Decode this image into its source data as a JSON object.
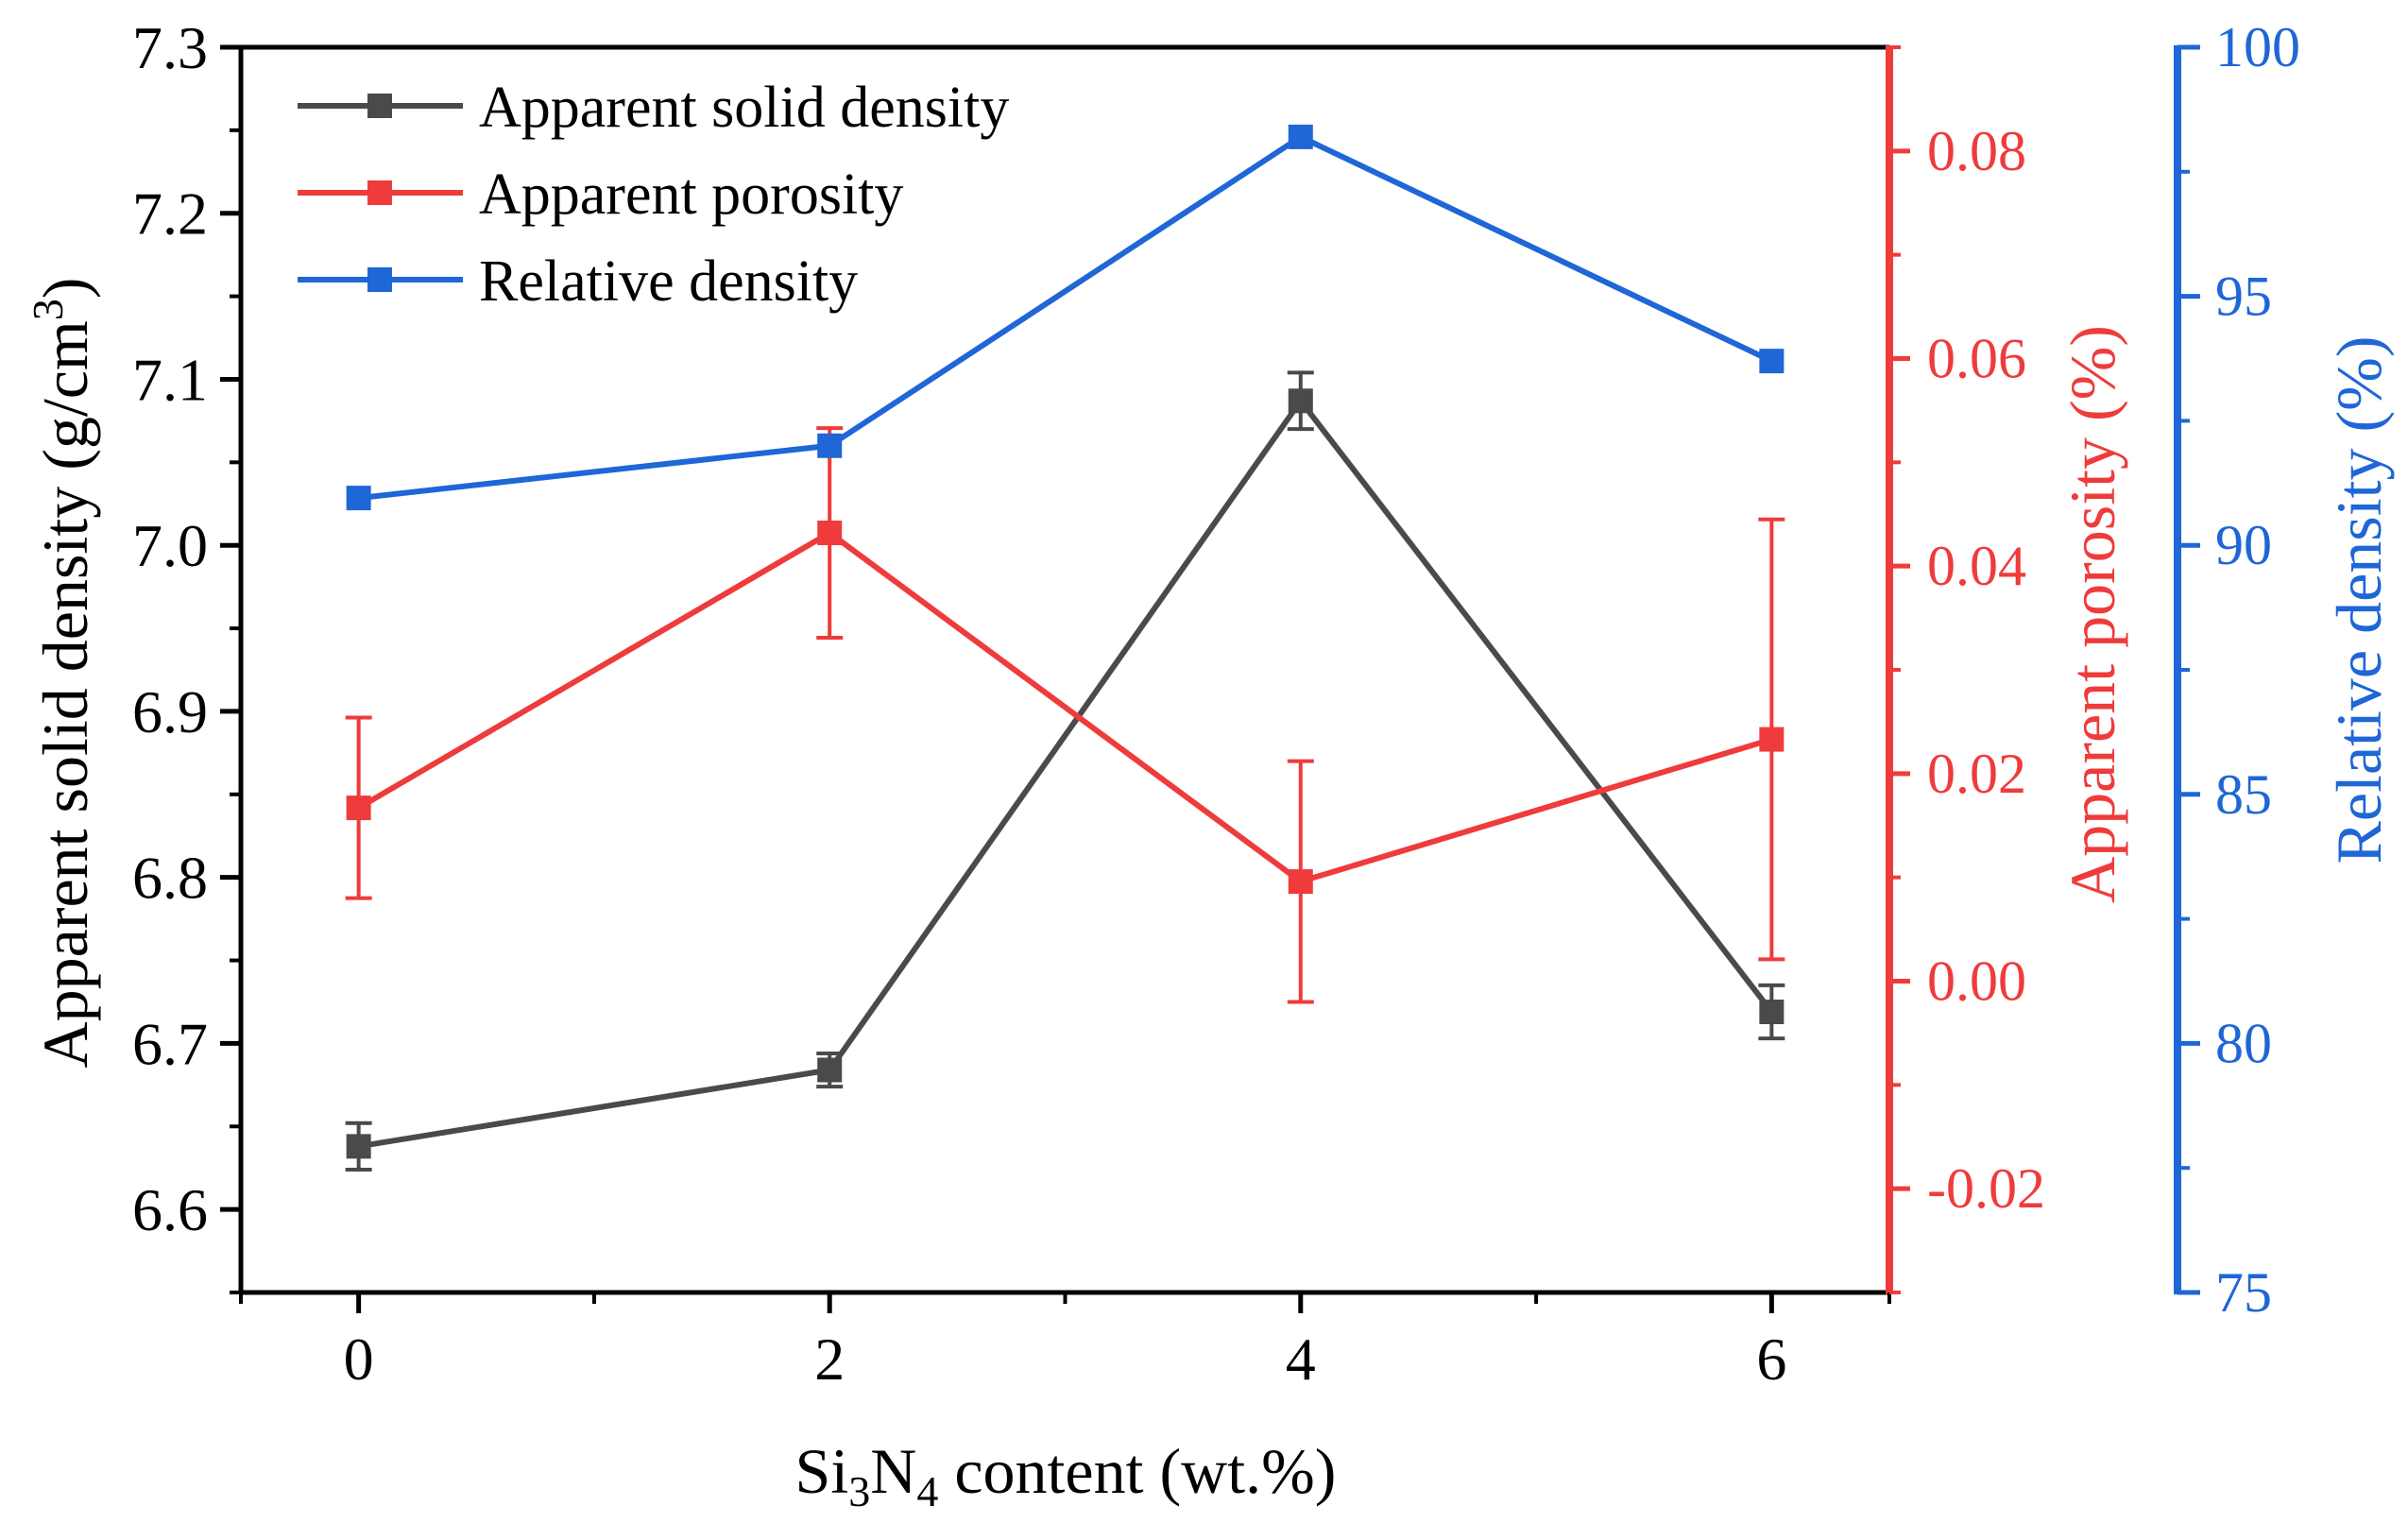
{
  "chart_data": {
    "type": "line",
    "x": [
      0,
      2,
      4,
      6
    ],
    "xlabel": {
      "pre": "Si",
      "sub1": "3",
      "mid": "N",
      "sub2": "4",
      "post": " content (wt.%)"
    },
    "xticks": [
      "0",
      "2",
      "4",
      "6"
    ],
    "xlim": [
      -0.5,
      6.5
    ],
    "axes": {
      "left": {
        "label": {
          "pre": "Apparent solid density (g/cm",
          "sup": "3",
          "post": ")"
        },
        "ylim": [
          6.55,
          7.3
        ],
        "ticks": [
          "6.6",
          "6.7",
          "6.8",
          "6.9",
          "7.0",
          "7.1",
          "7.2",
          "7.3"
        ],
        "color": "#000000"
      },
      "right_red": {
        "label": "Apparent porosity  (%)",
        "ylim": [
          -0.03,
          0.09
        ],
        "ticks": [
          "-0.02",
          "0.00",
          "0.02",
          "0.04",
          "0.06",
          "0.08"
        ],
        "color": "#ef3b3b"
      },
      "right_blue": {
        "label": "Relative density  (%)",
        "ylim": [
          75,
          100
        ],
        "ticks": [
          "75",
          "80",
          "85",
          "90",
          "95",
          "100"
        ],
        "color": "#1f66d6"
      }
    },
    "series": [
      {
        "name": "Apparent solid density",
        "axis": "left",
        "color": "#4a4a4a",
        "values": [
          6.638,
          6.684,
          7.087,
          6.719
        ],
        "errors": [
          0.014,
          0.01,
          0.017,
          0.016
        ]
      },
      {
        "name": "Apparent porosity",
        "axis": "right_red",
        "color": "#ef3b3b",
        "values": [
          0.0167,
          0.0432,
          0.0096,
          0.0233
        ],
        "errors": [
          0.0087,
          0.0101,
          0.0116,
          0.0212
        ]
      },
      {
        "name": "Relative density",
        "axis": "right_blue",
        "color": "#1f66d6",
        "values": [
          90.95,
          92.0,
          98.2,
          93.7
        ],
        "errors": [
          0,
          0,
          0,
          0
        ]
      }
    ],
    "legend": {
      "position": "top-left"
    }
  }
}
